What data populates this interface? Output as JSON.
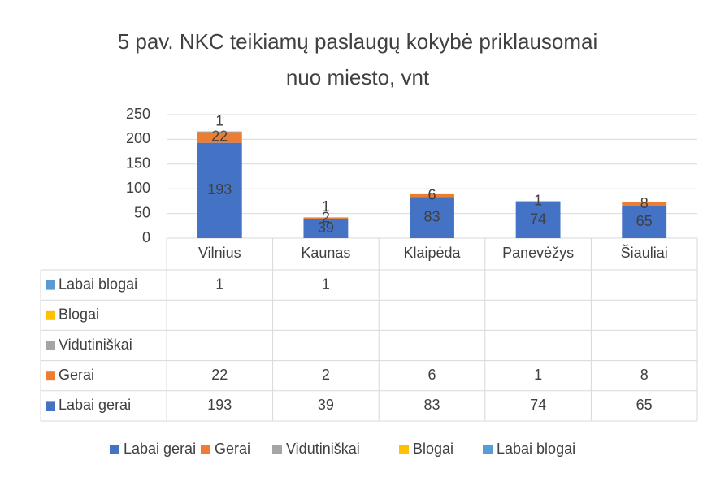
{
  "chart_data": {
    "type": "bar",
    "stacked": true,
    "title": [
      "5 pav. NKC teikiamų paslaugų kokybė priklausomai",
      "nuo miesto, vnt"
    ],
    "categories": [
      "Vilnius",
      "Kaunas",
      "Klaipėda",
      "Panevėžys",
      "Šiauliai"
    ],
    "series": [
      {
        "name": "Labai gerai",
        "color": "#4472c4",
        "values": [
          193,
          39,
          83,
          74,
          65
        ]
      },
      {
        "name": "Gerai",
        "color": "#ed7d31",
        "values": [
          22,
          2,
          6,
          1,
          8
        ]
      },
      {
        "name": "Vidutiniškai",
        "color": "#a5a5a5",
        "values": [
          null,
          null,
          null,
          null,
          null
        ]
      },
      {
        "name": "Blogai",
        "color": "#ffc000",
        "values": [
          null,
          null,
          null,
          null,
          null
        ]
      },
      {
        "name": "Labai blogai",
        "color": "#5b9bd5",
        "values": [
          1,
          1,
          null,
          null,
          null
        ]
      }
    ],
    "ylim": [
      0,
      250
    ],
    "yticks": [
      0,
      50,
      100,
      150,
      200,
      250
    ],
    "grid": true,
    "legend": "bottom",
    "data_table": true
  }
}
